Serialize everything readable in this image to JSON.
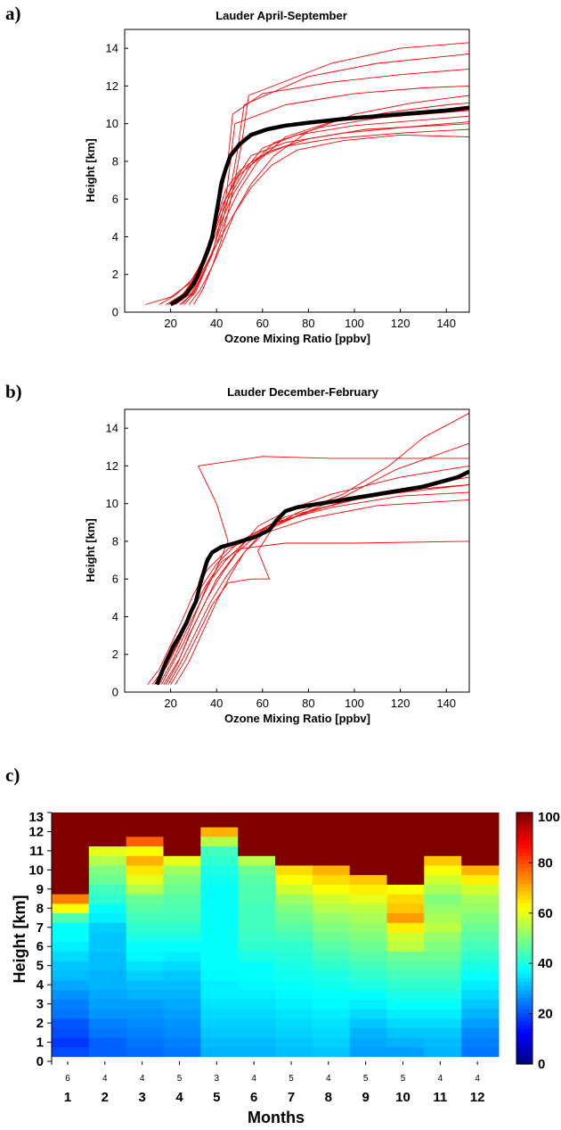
{
  "panel_labels": [
    "a)",
    "b)",
    "c)"
  ],
  "chart_data": [
    {
      "type": "line",
      "panel": "a)",
      "title": "Lauder April-September",
      "xlabel": "Ozone Mixing Ratio [ppbv]",
      "ylabel": "Height [km]",
      "xlim": [
        0,
        150
      ],
      "ylim": [
        0,
        15
      ],
      "xticks": [
        "20",
        "40",
        "60",
        "80",
        "100",
        "120",
        "140"
      ],
      "yticks": [
        "0",
        "2",
        "4",
        "6",
        "8",
        "10",
        "12",
        "14"
      ],
      "grid": false,
      "colors": {
        "profiles": "#ff0000",
        "mean": "#000000"
      },
      "series": [
        {
          "role": "mean",
          "x": [
            20,
            24,
            27,
            30,
            32,
            34,
            36,
            38,
            39,
            40,
            41,
            42,
            44,
            46,
            50,
            55,
            62,
            70,
            80,
            95,
            110,
            125,
            140,
            150
          ],
          "y": [
            0.4,
            0.7,
            1.0,
            1.5,
            2.0,
            2.6,
            3.2,
            3.9,
            4.6,
            5.3,
            6.0,
            6.8,
            7.6,
            8.3,
            8.9,
            9.4,
            9.7,
            9.9,
            10.05,
            10.25,
            10.4,
            10.55,
            10.7,
            10.85
          ]
        },
        {
          "role": "profile",
          "x": [
            9,
            20,
            28,
            33,
            36,
            40,
            44,
            50,
            58,
            70,
            90,
            120,
            150
          ],
          "y": [
            0.4,
            0.8,
            1.5,
            2.5,
            3.5,
            5.0,
            6.5,
            7.5,
            8.2,
            8.8,
            9.2,
            9.5,
            9.7
          ]
        },
        {
          "role": "profile",
          "x": [
            15,
            22,
            30,
            34,
            38,
            42,
            48,
            55,
            70,
            95,
            130,
            150
          ],
          "y": [
            0.4,
            0.9,
            1.8,
            2.8,
            4.0,
            5.5,
            7.0,
            8.3,
            9.0,
            9.5,
            9.9,
            10.1
          ]
        },
        {
          "role": "profile",
          "x": [
            18,
            26,
            32,
            36,
            40,
            45,
            52,
            60,
            75,
            100,
            130,
            150
          ],
          "y": [
            0.4,
            1.0,
            2.0,
            3.2,
            4.5,
            6.0,
            7.5,
            8.7,
            9.4,
            9.9,
            10.2,
            10.4
          ]
        },
        {
          "role": "profile",
          "x": [
            22,
            28,
            33,
            37,
            42,
            47,
            55,
            65,
            85,
            110,
            140,
            150
          ],
          "y": [
            0.4,
            1.0,
            2.1,
            3.4,
            4.8,
            6.2,
            7.8,
            9.0,
            9.8,
            10.3,
            10.6,
            10.7
          ]
        },
        {
          "role": "profile",
          "x": [
            25,
            30,
            35,
            40,
            44,
            50,
            58,
            70,
            90,
            115,
            140,
            150
          ],
          "y": [
            0.4,
            1.1,
            2.3,
            3.6,
            5.0,
            6.5,
            8.0,
            9.3,
            10.1,
            10.6,
            11.0,
            11.1
          ]
        },
        {
          "role": "profile",
          "x": [
            28,
            33,
            38,
            43,
            48,
            55,
            65,
            80,
            100,
            125,
            150
          ],
          "y": [
            0.4,
            1.2,
            2.4,
            3.8,
            5.3,
            6.8,
            8.3,
            9.6,
            10.5,
            11.1,
            11.5
          ]
        },
        {
          "role": "profile",
          "x": [
            24,
            30,
            34,
            38,
            41,
            44,
            46,
            48,
            70,
            100,
            130,
            150
          ],
          "y": [
            0.4,
            1.0,
            2.0,
            3.0,
            4.5,
            6.0,
            8.0,
            10.0,
            11.0,
            11.6,
            11.9,
            12.0
          ]
        },
        {
          "role": "profile",
          "x": [
            20,
            27,
            32,
            36,
            39,
            42,
            45,
            47,
            60,
            90,
            120,
            150
          ],
          "y": [
            0.4,
            1.0,
            2.0,
            3.1,
            4.6,
            6.2,
            8.1,
            10.5,
            11.6,
            12.2,
            12.6,
            12.9
          ]
        },
        {
          "role": "profile",
          "x": [
            26,
            31,
            35,
            39,
            43,
            46,
            49,
            52,
            80,
            110,
            150
          ],
          "y": [
            0.4,
            1.1,
            2.2,
            3.5,
            5.0,
            6.5,
            8.5,
            11.0,
            12.5,
            13.2,
            13.7
          ]
        },
        {
          "role": "profile",
          "x": [
            30,
            34,
            38,
            42,
            45,
            48,
            51,
            54,
            90,
            120,
            150
          ],
          "y": [
            0.4,
            1.2,
            2.4,
            3.8,
            5.3,
            7.0,
            9.0,
            11.5,
            13.2,
            14.0,
            14.3
          ]
        },
        {
          "role": "profile",
          "x": [
            22,
            29,
            34,
            40,
            47,
            55,
            64,
            75,
            95,
            120,
            150
          ],
          "y": [
            0.4,
            1.0,
            2.2,
            3.6,
            5.1,
            6.6,
            7.8,
            8.6,
            9.1,
            9.4,
            9.3
          ]
        },
        {
          "role": "profile",
          "x": [
            19,
            25,
            31,
            35,
            39,
            43,
            50,
            62,
            80,
            105,
            150
          ],
          "y": [
            0.4,
            0.9,
            1.9,
            3.0,
            4.3,
            5.8,
            7.3,
            8.5,
            9.2,
            9.7,
            10.0
          ]
        }
      ]
    },
    {
      "type": "line",
      "panel": "b)",
      "title": "Lauder December-February",
      "xlabel": "Ozone Mixing Ratio [ppbv]",
      "ylabel": "Height [km]",
      "xlim": [
        0,
        150
      ],
      "ylim": [
        0,
        15
      ],
      "xticks": [
        "20",
        "40",
        "60",
        "80",
        "100",
        "120",
        "140"
      ],
      "yticks": [
        "0",
        "2",
        "4",
        "6",
        "8",
        "10",
        "12",
        "14"
      ],
      "grid": false,
      "colors": {
        "profiles": "#ff0000",
        "mean": "#000000"
      },
      "series": [
        {
          "role": "mean",
          "x": [
            14,
            16,
            18,
            21,
            24,
            27,
            29,
            31,
            32,
            33,
            34,
            35,
            36,
            38,
            42,
            48,
            56,
            63,
            66,
            70,
            75,
            90,
            110,
            130,
            145,
            150
          ],
          "y": [
            0.4,
            1.0,
            1.6,
            2.4,
            3.0,
            3.7,
            4.3,
            4.8,
            5.3,
            5.8,
            6.2,
            6.6,
            7.0,
            7.4,
            7.7,
            7.9,
            8.2,
            8.6,
            9.1,
            9.6,
            9.8,
            10.1,
            10.5,
            10.9,
            11.4,
            11.7
          ]
        },
        {
          "role": "profile",
          "x": [
            10,
            15,
            20,
            25,
            30,
            36,
            45,
            60,
            80,
            110,
            150
          ],
          "y": [
            0.4,
            1.2,
            2.5,
            3.8,
            5.2,
            6.5,
            7.6,
            8.4,
            9.2,
            9.9,
            10.2
          ]
        },
        {
          "role": "profile",
          "x": [
            12,
            18,
            24,
            28,
            33,
            40,
            50,
            65,
            90,
            120,
            150
          ],
          "y": [
            0.4,
            1.4,
            2.8,
            4.0,
            5.5,
            6.8,
            8.0,
            9.0,
            9.8,
            10.4,
            10.6
          ]
        },
        {
          "role": "profile",
          "x": [
            16,
            20,
            26,
            31,
            36,
            44,
            55,
            70,
            100,
            130,
            150
          ],
          "y": [
            0.4,
            1.3,
            2.7,
            4.2,
            5.7,
            7.0,
            8.3,
            9.3,
            10.2,
            10.8,
            11.0
          ]
        },
        {
          "role": "profile",
          "x": [
            18,
            23,
            28,
            34,
            40,
            48,
            60,
            80,
            110,
            140,
            150
          ],
          "y": [
            0.4,
            1.5,
            3.0,
            4.5,
            6.0,
            7.3,
            8.6,
            9.6,
            10.5,
            11.2,
            11.4
          ]
        },
        {
          "role": "profile",
          "x": [
            20,
            26,
            32,
            38,
            45,
            55,
            63,
            58,
            66,
            100,
            150
          ],
          "y": [
            0.4,
            1.6,
            3.1,
            4.6,
            5.8,
            6.0,
            6.0,
            7.5,
            9.0,
            10.3,
            11.0
          ]
        },
        {
          "role": "profile",
          "x": [
            13,
            19,
            25,
            30,
            35,
            42,
            50,
            70,
            100,
            150
          ],
          "y": [
            0.4,
            1.5,
            3.0,
            4.4,
            5.6,
            6.9,
            7.6,
            7.9,
            7.9,
            8.0
          ]
        },
        {
          "role": "profile",
          "x": [
            15,
            21,
            27,
            33,
            39,
            45,
            40,
            32,
            60,
            90,
            150
          ],
          "y": [
            0.4,
            1.7,
            3.3,
            4.8,
            6.3,
            8.0,
            10.0,
            12.0,
            12.5,
            12.4,
            12.4
          ]
        },
        {
          "role": "profile",
          "x": [
            22,
            28,
            34,
            40,
            46,
            52,
            60,
            75,
            95,
            115,
            130,
            150
          ],
          "y": [
            0.4,
            1.6,
            3.2,
            4.8,
            6.2,
            7.4,
            8.5,
            9.5,
            10.5,
            12.0,
            13.5,
            14.8
          ]
        },
        {
          "role": "profile",
          "x": [
            17,
            24,
            30,
            36,
            43,
            50,
            58,
            72,
            90,
            120,
            150
          ],
          "y": [
            0.4,
            1.8,
            3.5,
            5.0,
            6.4,
            7.6,
            8.8,
            9.7,
            10.5,
            11.4,
            12.0
          ]
        },
        {
          "role": "profile",
          "x": [
            19,
            25,
            31,
            37,
            44,
            52,
            62,
            78,
            96,
            118,
            150
          ],
          "y": [
            0.4,
            1.7,
            3.2,
            4.7,
            6.1,
            7.4,
            8.6,
            9.5,
            10.4,
            11.8,
            13.2
          ]
        }
      ]
    },
    {
      "type": "heatmap",
      "panel": "c)",
      "xlabel": "Months",
      "ylabel": "Height [km]",
      "x": [
        "1",
        "2",
        "3",
        "4",
        "5",
        "6",
        "7",
        "8",
        "9",
        "10",
        "11",
        "12"
      ],
      "counts": [
        "6",
        "4",
        "4",
        "5",
        "3",
        "4",
        "5",
        "4",
        "5",
        "5",
        "4",
        "4"
      ],
      "yticks": [
        "0",
        "1",
        "2",
        "3",
        "4",
        "5",
        "6",
        "7",
        "8",
        "9",
        "10",
        "11",
        "12",
        "13"
      ],
      "ylim": [
        0,
        13
      ],
      "row_heights_km": [
        0.5,
        1,
        1.5,
        2,
        2.5,
        3,
        3.5,
        4,
        4.5,
        5,
        5.5,
        6,
        6.5,
        7,
        7.5,
        8,
        8.5,
        9,
        9.5,
        10,
        10.5,
        11,
        11.5,
        12,
        12.5
      ],
      "colorbar": {
        "min": 0,
        "max": 100,
        "ticks": [
          "0",
          "20",
          "40",
          "60",
          "80",
          "100"
        ]
      },
      "values": [
        [
          20,
          18,
          20,
          21,
          24,
          25,
          27,
          29,
          31,
          32,
          34,
          36,
          38,
          38,
          45,
          62,
          75,
          100,
          100,
          100,
          100,
          100,
          100,
          100,
          100
        ],
        [
          22,
          22,
          24,
          25,
          27,
          28,
          29,
          30,
          30,
          31,
          31,
          32,
          32,
          33,
          36,
          38,
          42,
          44,
          48,
          50,
          55,
          60,
          100,
          100,
          100
        ],
        [
          23,
          24,
          25,
          26,
          27,
          28,
          30,
          31,
          33,
          35,
          37,
          38,
          40,
          42,
          44,
          46,
          48,
          55,
          60,
          65,
          70,
          62,
          78,
          100,
          100
        ],
        [
          24,
          25,
          26,
          27,
          28,
          29,
          30,
          31,
          32,
          34,
          36,
          38,
          40,
          42,
          44,
          45,
          46,
          48,
          50,
          53,
          60,
          100,
          100,
          100,
          100
        ],
        [
          30,
          31,
          32,
          33,
          34,
          35,
          36,
          36,
          37,
          38,
          38,
          38,
          38,
          38,
          38,
          38,
          38,
          38,
          39,
          40,
          42,
          44,
          55,
          70,
          100
        ],
        [
          30,
          31,
          32,
          33,
          34,
          35,
          36,
          37,
          38,
          38,
          40,
          42,
          43,
          44,
          44,
          44,
          45,
          45,
          46,
          48,
          55,
          100,
          100,
          100,
          100
        ],
        [
          31,
          32,
          33,
          34,
          35,
          36,
          37,
          38,
          39,
          40,
          41,
          42,
          44,
          46,
          48,
          50,
          53,
          58,
          62,
          66,
          100,
          100,
          100,
          100,
          100
        ],
        [
          32,
          33,
          34,
          35,
          36,
          37,
          38,
          39,
          40,
          42,
          44,
          46,
          48,
          50,
          52,
          55,
          58,
          62,
          66,
          70,
          100,
          100,
          100,
          100,
          100
        ],
        [
          28,
          29,
          30,
          32,
          34,
          36,
          38,
          40,
          42,
          44,
          46,
          48,
          50,
          52,
          54,
          56,
          60,
          64,
          68,
          100,
          100,
          100,
          100,
          100,
          100
        ],
        [
          28,
          30,
          32,
          34,
          36,
          38,
          40,
          42,
          44,
          46,
          48,
          56,
          58,
          64,
          72,
          68,
          66,
          62,
          100,
          100,
          100,
          100,
          100,
          100,
          100
        ],
        [
          30,
          31,
          32,
          34,
          36,
          38,
          40,
          42,
          44,
          46,
          48,
          50,
          52,
          56,
          54,
          52,
          50,
          54,
          58,
          62,
          68,
          100,
          100,
          100,
          100
        ],
        [
          24,
          25,
          26,
          28,
          30,
          32,
          34,
          36,
          38,
          40,
          42,
          44,
          46,
          48,
          50,
          52,
          54,
          58,
          64,
          70,
          100,
          100,
          100,
          100,
          100
        ]
      ]
    }
  ]
}
